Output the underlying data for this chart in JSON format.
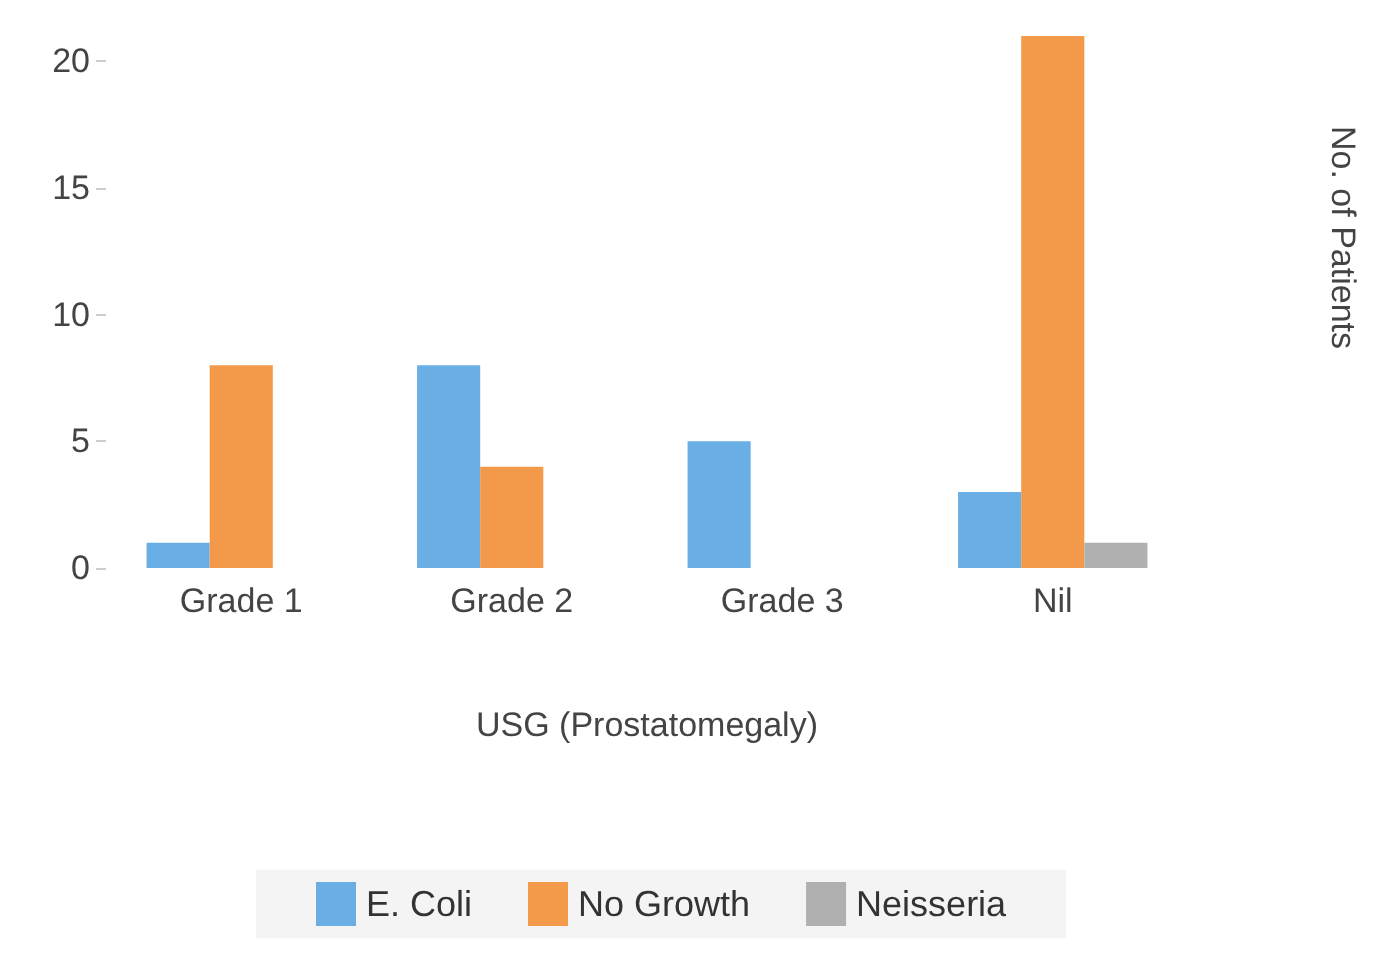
{
  "chart_data": {
    "type": "bar",
    "xlabel": "USG (Prostatomegaly)",
    "ylabel": "No. of Patients",
    "categories": [
      "Grade 1",
      "Grade 2",
      "Grade 3",
      "Nil"
    ],
    "series": [
      {
        "name": "E. Coli",
        "color": "#6aaee6",
        "values": [
          1,
          8,
          5,
          3
        ]
      },
      {
        "name": "No Growth",
        "color": "#f29a4a",
        "values": [
          8,
          4,
          0,
          21
        ]
      },
      {
        "name": "Neisseria",
        "color": "#b0b0b0",
        "values": [
          0,
          0,
          0,
          1
        ]
      }
    ],
    "ylim": [
      0,
      21
    ],
    "yticks": [
      0,
      5,
      10,
      15,
      20
    ],
    "grid": false,
    "legend": "bottom"
  }
}
